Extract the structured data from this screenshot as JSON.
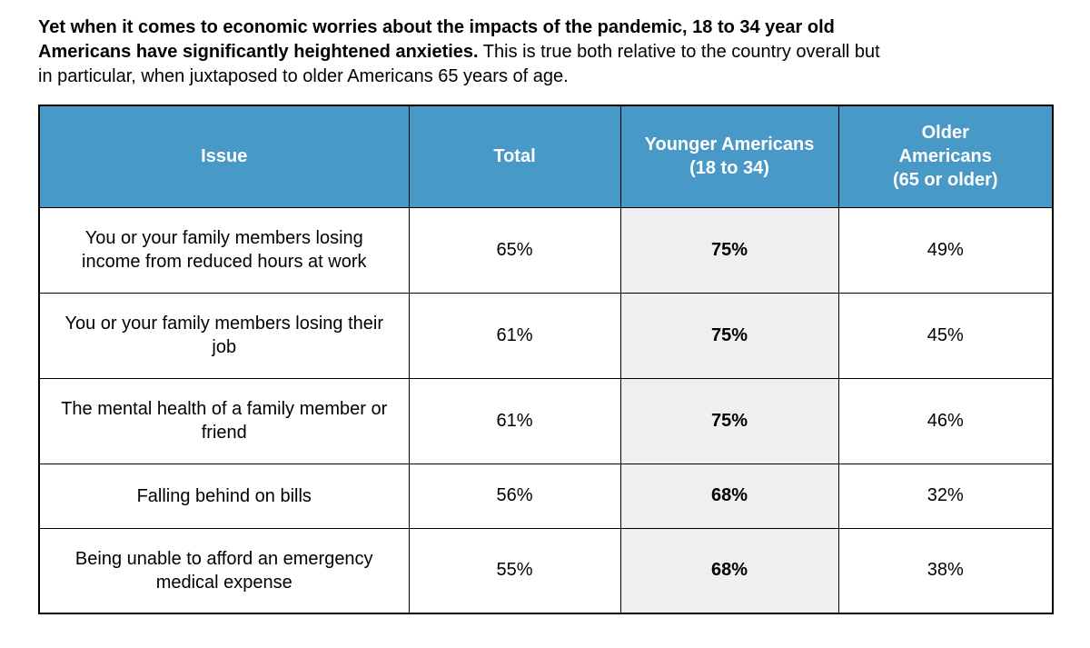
{
  "intro": {
    "lines": [
      {
        "bold": "Yet when it comes to economic worries about the impacts of the pandemic, 18 to 34 year old",
        "regular": ""
      },
      {
        "bold": "Americans have significantly heightened anxieties.",
        "regular": " This is true both relative to the country overall but"
      },
      {
        "bold": "",
        "regular": "in particular, when juxtaposed to older Americans 65 years of age."
      }
    ]
  },
  "table": {
    "columns": [
      "Issue",
      "Total",
      "Younger Americans\n(18 to 34)",
      "Older\nAmericans\n(65 or older)"
    ],
    "rows": [
      {
        "issue": "You or your family members losing\nincome from reduced hours at work",
        "total": "65%",
        "younger": "75%",
        "older": "49%"
      },
      {
        "issue": "You or your family members losing their\njob",
        "total": "61%",
        "younger": "75%",
        "older": "45%"
      },
      {
        "issue": "The mental health of a family member or\nfriend",
        "total": "61%",
        "younger": "75%",
        "older": "46%"
      },
      {
        "issue": "Falling behind on bills",
        "total": "56%",
        "younger": "68%",
        "older": "32%"
      },
      {
        "issue": "Being unable to afford an emergency\nmedical expense",
        "total": "55%",
        "younger": "68%",
        "older": "38%"
      }
    ]
  },
  "colors": {
    "header_bg": "#4899C8",
    "highlight_col_bg": "#EFEFEF",
    "border": "#000000",
    "header_text": "#FFFFFF",
    "body_text": "#000000"
  }
}
